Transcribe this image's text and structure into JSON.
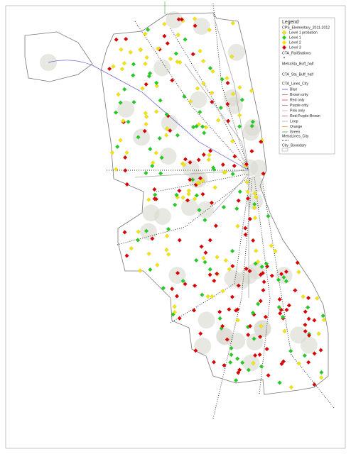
{
  "legend": {
    "title": "Legend",
    "entries": [
      "CPS_Elementary_2011-2012",
      "Level 1 probation",
      "Level 1",
      "Level 2",
      "Level 3",
      "CTA_RailStations",
      "MetraSta_Buff_half",
      "CTA_Sta_Buff_half",
      "CTA_Lines_City",
      "Blue",
      "Brown only",
      "Red only",
      "Purple only",
      "Pink only",
      "Red-Purple-Brown",
      "Loop",
      "Orange",
      "Green",
      "MetraLines_City",
      "City_Boundary"
    ]
  }
}
